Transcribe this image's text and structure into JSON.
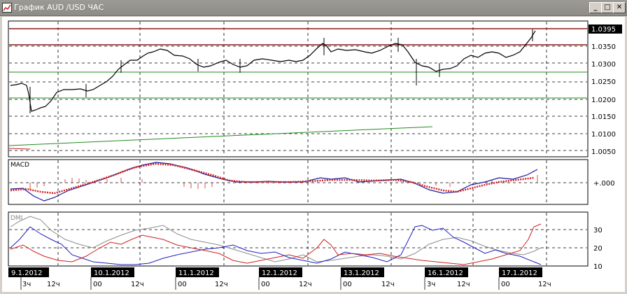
{
  "window": {
    "title": "График AUD /USD ЧАС",
    "minimize_glyph": "_",
    "maximize_glyph": "□",
    "close_glyph": "✕"
  },
  "price_panel": {
    "current_price": "1.0395",
    "price_labels": [
      "1.0350",
      "1.0300",
      "1.0250",
      "1.0200",
      "1.0150",
      "1.0100",
      "1.0050"
    ]
  },
  "macd_panel": {
    "title": "MACD",
    "zero_label": "+.000"
  },
  "dmi_panel": {
    "title": "DMI",
    "labels": [
      "30",
      "20",
      "10"
    ]
  },
  "time_axis": {
    "date_labels": [
      "9.1.2012",
      "10.1.2012",
      "11.1.2012",
      "12.1.2012",
      "13.1.2012",
      "16.1.2012",
      "17.1.2012"
    ],
    "tick_labels": [
      "3ч",
      "12ч",
      "00",
      "12ч",
      "00",
      "12ч",
      "00",
      "12ч",
      "00",
      "12ч",
      "3ч",
      "12ч",
      "00",
      "12ч"
    ]
  },
  "colors": {
    "resistance_line": "#8b1a1a",
    "support_line": "#228b22",
    "macd_signal": "#d22222",
    "macd_line": "#1a1aa0",
    "dmi_plus": "#2020c0",
    "dmi_minus": "#d02020",
    "adx": "#8c8c8c"
  }
}
